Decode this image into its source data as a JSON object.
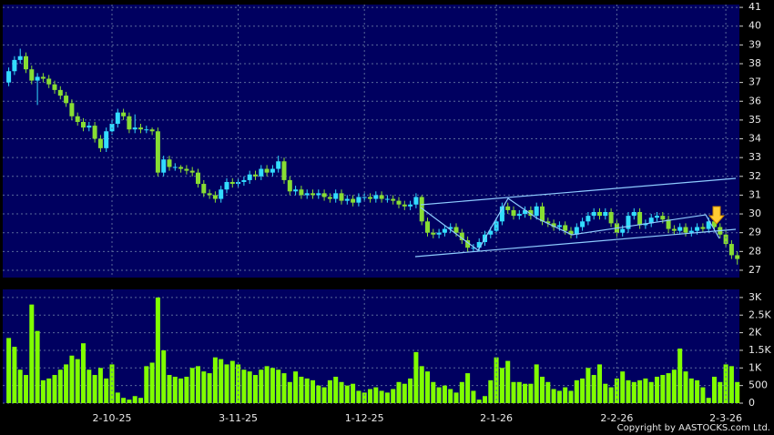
{
  "chart_data": [
    {
      "type": "candlestick",
      "up_color": "#33ddff",
      "down_color": "#88dd33",
      "ylim": [
        26.61,
        41.15
      ],
      "yticks": [
        27,
        28,
        29,
        30,
        31,
        32,
        33,
        34,
        35,
        36,
        37,
        38,
        39,
        40,
        41
      ],
      "grid": true,
      "open": [
        37.0,
        37.6,
        38.2,
        38.4,
        37.7,
        37.1,
        37.3,
        37.2,
        36.9,
        36.6,
        36.3,
        35.9,
        35.2,
        34.9,
        34.6,
        34.7,
        34.0,
        33.5,
        34.4,
        34.8,
        35.4,
        35.2,
        34.5,
        34.6,
        34.5,
        34.5,
        34.4,
        32.2,
        32.9,
        32.5,
        32.5,
        32.4,
        32.3,
        32.2,
        31.6,
        31.1,
        31.0,
        30.8,
        31.3,
        31.7,
        31.6,
        31.7,
        31.8,
        32.1,
        32.0,
        32.4,
        32.2,
        32.4,
        32.8,
        31.8,
        31.2,
        31.3,
        31.0,
        31.1,
        31.0,
        31.1,
        30.9,
        30.8,
        31.1,
        30.7,
        30.8,
        30.6,
        30.9,
        30.9,
        30.8,
        31.0,
        30.8,
        30.8,
        30.7,
        30.5,
        30.4,
        30.5,
        30.9,
        29.6,
        29.0,
        28.9,
        29.0,
        29.2,
        29.3,
        29.0,
        28.6,
        28.2,
        28.2,
        28.5,
        28.9,
        29.1,
        29.6,
        30.4,
        30.2,
        29.9,
        30.0,
        30.2,
        29.9,
        30.4,
        29.6,
        29.5,
        29.3,
        29.4,
        29.1,
        28.9,
        29.3,
        29.6,
        29.9,
        30.1,
        29.9,
        30.1,
        29.5,
        29.0,
        29.2,
        29.9,
        30.1,
        29.4,
        29.5,
        29.8,
        29.9,
        29.7,
        29.2,
        29.1,
        29.3,
        29.0,
        29.1,
        29.3,
        29.2,
        29.6,
        29.3,
        28.9,
        28.4,
        27.8
      ],
      "high": [
        37.8,
        38.4,
        38.8,
        38.6,
        37.9,
        37.5,
        37.5,
        37.4,
        37.1,
        36.8,
        36.5,
        36.1,
        35.4,
        35.1,
        34.9,
        34.9,
        34.2,
        34.6,
        35.0,
        35.6,
        35.6,
        35.4,
        35.3,
        34.8,
        34.7,
        34.6,
        34.6,
        33.1,
        33.1,
        32.7,
        32.6,
        32.6,
        32.5,
        32.4,
        31.8,
        31.3,
        31.2,
        31.5,
        31.9,
        31.9,
        31.9,
        32.0,
        32.3,
        32.3,
        32.6,
        32.6,
        32.6,
        33.1,
        33.0,
        32.0,
        31.5,
        31.5,
        31.3,
        31.3,
        31.3,
        31.3,
        31.1,
        31.3,
        31.3,
        31.0,
        31.0,
        31.1,
        31.1,
        31.1,
        31.2,
        31.2,
        31.0,
        31.0,
        30.9,
        30.7,
        30.7,
        31.1,
        31.0,
        29.8,
        29.2,
        29.2,
        29.4,
        29.5,
        29.5,
        29.2,
        28.8,
        28.4,
        28.7,
        29.1,
        29.3,
        29.8,
        30.6,
        30.6,
        30.4,
        30.2,
        30.4,
        30.4,
        30.6,
        30.6,
        29.8,
        29.7,
        29.6,
        29.6,
        29.3,
        29.5,
        29.8,
        30.1,
        30.3,
        30.3,
        30.3,
        30.3,
        29.7,
        29.4,
        30.1,
        30.3,
        30.3,
        29.7,
        30.0,
        30.1,
        30.1,
        29.9,
        29.4,
        29.5,
        29.5,
        29.3,
        29.5,
        29.5,
        29.8,
        29.8,
        29.5,
        29.1,
        28.6,
        28.0
      ],
      "low": [
        36.8,
        37.4,
        38.0,
        37.5,
        36.9,
        35.8,
        37.0,
        36.7,
        36.4,
        36.1,
        35.7,
        35.0,
        34.7,
        34.4,
        34.4,
        33.8,
        33.3,
        33.3,
        34.2,
        34.6,
        35.0,
        34.3,
        34.3,
        34.3,
        34.3,
        34.2,
        32.0,
        32.0,
        32.3,
        32.3,
        32.2,
        32.1,
        32.0,
        31.4,
        30.9,
        30.8,
        30.6,
        30.6,
        31.1,
        31.4,
        31.4,
        31.5,
        31.6,
        31.8,
        31.8,
        32.0,
        32.0,
        32.2,
        31.6,
        31.0,
        31.0,
        30.8,
        30.8,
        30.8,
        30.8,
        30.7,
        30.6,
        30.6,
        30.5,
        30.5,
        30.4,
        30.4,
        30.7,
        30.6,
        30.6,
        30.6,
        30.6,
        30.5,
        30.3,
        30.2,
        30.2,
        30.3,
        29.4,
        28.8,
        28.7,
        28.7,
        28.8,
        29.0,
        28.8,
        28.4,
        28.0,
        28.0,
        28.0,
        28.3,
        28.7,
        28.9,
        29.4,
        30.0,
        29.7,
        29.7,
        29.8,
        29.7,
        29.7,
        29.4,
        29.3,
        29.1,
        29.1,
        28.9,
        28.7,
        28.7,
        29.1,
        29.4,
        29.7,
        29.7,
        29.7,
        29.3,
        28.8,
        28.8,
        29.0,
        29.7,
        29.2,
        29.2,
        29.3,
        29.6,
        29.5,
        29.0,
        28.9,
        28.9,
        28.8,
        28.8,
        28.9,
        29.0,
        29.0,
        29.1,
        28.7,
        28.2,
        27.6,
        27.3
      ],
      "close": [
        37.6,
        38.2,
        38.4,
        37.7,
        37.1,
        37.3,
        37.2,
        36.9,
        36.6,
        36.3,
        35.9,
        35.2,
        34.9,
        34.6,
        34.7,
        34.0,
        33.5,
        34.4,
        34.8,
        35.4,
        35.2,
        34.5,
        34.6,
        34.5,
        34.5,
        34.4,
        32.2,
        32.9,
        32.5,
        32.5,
        32.4,
        32.3,
        32.2,
        31.6,
        31.1,
        31.0,
        30.8,
        31.3,
        31.7,
        31.6,
        31.7,
        31.8,
        32.1,
        32.0,
        32.4,
        32.2,
        32.4,
        32.8,
        31.8,
        31.2,
        31.3,
        31.0,
        31.1,
        31.0,
        31.1,
        30.9,
        30.8,
        31.1,
        30.7,
        30.8,
        30.6,
        30.9,
        30.9,
        30.8,
        31.0,
        30.8,
        30.8,
        30.7,
        30.5,
        30.4,
        30.5,
        30.9,
        29.6,
        29.0,
        28.9,
        29.0,
        29.2,
        29.3,
        29.0,
        28.6,
        28.2,
        28.2,
        28.5,
        28.9,
        29.1,
        29.6,
        30.4,
        30.2,
        29.9,
        30.0,
        30.2,
        29.9,
        30.4,
        29.6,
        29.5,
        29.3,
        29.4,
        29.1,
        28.9,
        29.3,
        29.6,
        29.9,
        30.1,
        29.9,
        30.1,
        29.5,
        29.0,
        29.2,
        29.9,
        30.1,
        29.4,
        29.5,
        29.8,
        29.9,
        29.7,
        29.2,
        29.1,
        29.3,
        29.0,
        29.1,
        29.3,
        29.2,
        29.6,
        29.3,
        28.9,
        28.4,
        27.8,
        27.6
      ]
    },
    {
      "type": "bar",
      "color": "#80ff00",
      "ylim": [
        0,
        3230
      ],
      "yticks": [
        0,
        500,
        {
          "value": 1000,
          "label": "1K"
        },
        {
          "value": 1500,
          "label": "1.5K"
        },
        {
          "value": 2000,
          "label": "2K"
        },
        {
          "value": 2500,
          "label": "2.5K"
        },
        {
          "value": 3000,
          "label": "3K"
        }
      ],
      "grid": true,
      "categories": [
        null,
        null,
        null,
        null,
        null,
        null,
        null,
        null,
        null,
        null,
        null,
        null,
        null,
        null,
        null,
        null,
        null,
        null,
        "2-10-25",
        null,
        null,
        null,
        null,
        null,
        null,
        null,
        null,
        null,
        null,
        null,
        null,
        null,
        null,
        null,
        null,
        null,
        null,
        null,
        null,
        null,
        "3-11-25",
        null,
        null,
        null,
        null,
        null,
        null,
        null,
        null,
        null,
        null,
        null,
        null,
        null,
        null,
        null,
        null,
        null,
        null,
        null,
        null,
        null,
        "1-12-25",
        null,
        null,
        null,
        null,
        null,
        null,
        null,
        null,
        null,
        null,
        null,
        null,
        null,
        null,
        null,
        null,
        null,
        null,
        null,
        null,
        null,
        null,
        "2-1-26",
        null,
        null,
        null,
        null,
        null,
        null,
        null,
        null,
        null,
        null,
        null,
        null,
        null,
        null,
        null,
        null,
        null,
        null,
        null,
        null,
        "2-2-26",
        null,
        null,
        null,
        null,
        null,
        null,
        null,
        null,
        null,
        null,
        null,
        null,
        null,
        null,
        null,
        null,
        null,
        null,
        "2-3-26",
        null,
        null
      ],
      "values": [
        1850,
        1600,
        950,
        800,
        2800,
        2050,
        650,
        700,
        800,
        950,
        1100,
        1350,
        1250,
        1700,
        950,
        800,
        1000,
        700,
        1100,
        300,
        150,
        100,
        200,
        150,
        1050,
        1150,
        3000,
        1500,
        800,
        750,
        700,
        750,
        1000,
        1050,
        900,
        850,
        1300,
        1250,
        1100,
        1200,
        1100,
        950,
        900,
        800,
        950,
        1050,
        1000,
        950,
        850,
        600,
        900,
        750,
        700,
        650,
        500,
        450,
        650,
        750,
        600,
        500,
        550,
        350,
        300,
        400,
        450,
        350,
        300,
        400,
        600,
        550,
        700,
        1450,
        1050,
        900,
        600,
        450,
        500,
        400,
        300,
        600,
        850,
        350,
        100,
        200,
        650,
        1300,
        1000,
        1200,
        600,
        600,
        550,
        550,
        1100,
        750,
        600,
        400,
        350,
        450,
        350,
        650,
        700,
        1000,
        800,
        1100,
        550,
        450,
        700,
        900,
        650,
        600,
        650,
        700,
        600,
        750,
        800,
        850,
        950,
        1550,
        900,
        700,
        650,
        450,
        150,
        750,
        600,
        1100,
        1050,
        600
      ]
    }
  ],
  "copyright": "Copyright by AASTOCKS.com Ltd."
}
